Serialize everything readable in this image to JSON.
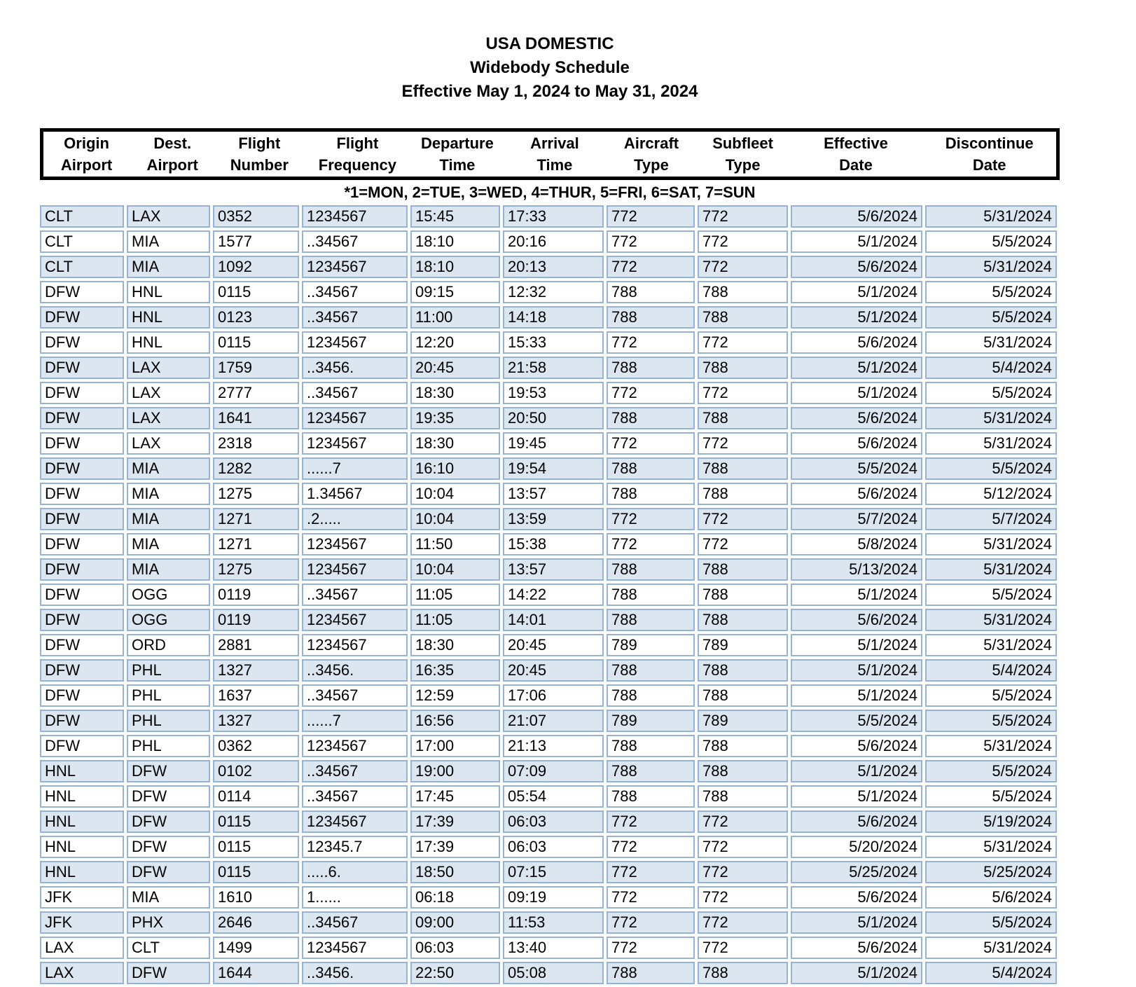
{
  "title": {
    "line1": "USA DOMESTIC",
    "line2": "Widebody Schedule",
    "line3": "Effective May 1, 2024 to May 31, 2024"
  },
  "legend": "*1=MON, 2=TUE, 3=WED, 4=THUR, 5=FRI, 6=SAT, 7=SUN",
  "columns": [
    {
      "key": "origin",
      "line1": "Origin",
      "line2": "Airport"
    },
    {
      "key": "dest",
      "line1": "Dest.",
      "line2": "Airport"
    },
    {
      "key": "flight-number",
      "line1": "Flight",
      "line2": "Number"
    },
    {
      "key": "frequency",
      "line1": "Flight",
      "line2": "Frequency"
    },
    {
      "key": "departure",
      "line1": "Departure",
      "line2": "Time"
    },
    {
      "key": "arrival",
      "line1": "Arrival",
      "line2": "Time"
    },
    {
      "key": "aircraft",
      "line1": "Aircraft",
      "line2": "Type"
    },
    {
      "key": "subfleet",
      "line1": "Subfleet",
      "line2": "Type"
    },
    {
      "key": "effective",
      "line1": "Effective",
      "line2": "Date"
    },
    {
      "key": "discontinue",
      "line1": "Discontinue",
      "line2": "Date"
    }
  ],
  "rows": [
    [
      "CLT",
      "LAX",
      "0352",
      "1234567",
      "15:45",
      "17:33",
      "772",
      "772",
      "5/6/2024",
      "5/31/2024"
    ],
    [
      "CLT",
      "MIA",
      "1577",
      "..34567",
      "18:10",
      "20:16",
      "772",
      "772",
      "5/1/2024",
      "5/5/2024"
    ],
    [
      "CLT",
      "MIA",
      "1092",
      "1234567",
      "18:10",
      "20:13",
      "772",
      "772",
      "5/6/2024",
      "5/31/2024"
    ],
    [
      "DFW",
      "HNL",
      "0115",
      "..34567",
      "09:15",
      "12:32",
      "788",
      "788",
      "5/1/2024",
      "5/5/2024"
    ],
    [
      "DFW",
      "HNL",
      "0123",
      "..34567",
      "11:00",
      "14:18",
      "788",
      "788",
      "5/1/2024",
      "5/5/2024"
    ],
    [
      "DFW",
      "HNL",
      "0115",
      "1234567",
      "12:20",
      "15:33",
      "772",
      "772",
      "5/6/2024",
      "5/31/2024"
    ],
    [
      "DFW",
      "LAX",
      "1759",
      "..3456.",
      "20:45",
      "21:58",
      "788",
      "788",
      "5/1/2024",
      "5/4/2024"
    ],
    [
      "DFW",
      "LAX",
      "2777",
      "..34567",
      "18:30",
      "19:53",
      "772",
      "772",
      "5/1/2024",
      "5/5/2024"
    ],
    [
      "DFW",
      "LAX",
      "1641",
      "1234567",
      "19:35",
      "20:50",
      "788",
      "788",
      "5/6/2024",
      "5/31/2024"
    ],
    [
      "DFW",
      "LAX",
      "2318",
      "1234567",
      "18:30",
      "19:45",
      "772",
      "772",
      "5/6/2024",
      "5/31/2024"
    ],
    [
      "DFW",
      "MIA",
      "1282",
      "......7",
      "16:10",
      "19:54",
      "788",
      "788",
      "5/5/2024",
      "5/5/2024"
    ],
    [
      "DFW",
      "MIA",
      "1275",
      "1.34567",
      "10:04",
      "13:57",
      "788",
      "788",
      "5/6/2024",
      "5/12/2024"
    ],
    [
      "DFW",
      "MIA",
      "1271",
      ".2.....",
      "10:04",
      "13:59",
      "772",
      "772",
      "5/7/2024",
      "5/7/2024"
    ],
    [
      "DFW",
      "MIA",
      "1271",
      "1234567",
      "11:50",
      "15:38",
      "772",
      "772",
      "5/8/2024",
      "5/31/2024"
    ],
    [
      "DFW",
      "MIA",
      "1275",
      "1234567",
      "10:04",
      "13:57",
      "788",
      "788",
      "5/13/2024",
      "5/31/2024"
    ],
    [
      "DFW",
      "OGG",
      "0119",
      "..34567",
      "11:05",
      "14:22",
      "788",
      "788",
      "5/1/2024",
      "5/5/2024"
    ],
    [
      "DFW",
      "OGG",
      "0119",
      "1234567",
      "11:05",
      "14:01",
      "788",
      "788",
      "5/6/2024",
      "5/31/2024"
    ],
    [
      "DFW",
      "ORD",
      "2881",
      "1234567",
      "18:30",
      "20:45",
      "789",
      "789",
      "5/1/2024",
      "5/31/2024"
    ],
    [
      "DFW",
      "PHL",
      "1327",
      "..3456.",
      "16:35",
      "20:45",
      "788",
      "788",
      "5/1/2024",
      "5/4/2024"
    ],
    [
      "DFW",
      "PHL",
      "1637",
      "..34567",
      "12:59",
      "17:06",
      "788",
      "788",
      "5/1/2024",
      "5/5/2024"
    ],
    [
      "DFW",
      "PHL",
      "1327",
      "......7",
      "16:56",
      "21:07",
      "789",
      "789",
      "5/5/2024",
      "5/5/2024"
    ],
    [
      "DFW",
      "PHL",
      "0362",
      "1234567",
      "17:00",
      "21:13",
      "788",
      "788",
      "5/6/2024",
      "5/31/2024"
    ],
    [
      "HNL",
      "DFW",
      "0102",
      "..34567",
      "19:00",
      "07:09",
      "788",
      "788",
      "5/1/2024",
      "5/5/2024"
    ],
    [
      "HNL",
      "DFW",
      "0114",
      "..34567",
      "17:45",
      "05:54",
      "788",
      "788",
      "5/1/2024",
      "5/5/2024"
    ],
    [
      "HNL",
      "DFW",
      "0115",
      "1234567",
      "17:39",
      "06:03",
      "772",
      "772",
      "5/6/2024",
      "5/19/2024"
    ],
    [
      "HNL",
      "DFW",
      "0115",
      "12345.7",
      "17:39",
      "06:03",
      "772",
      "772",
      "5/20/2024",
      "5/31/2024"
    ],
    [
      "HNL",
      "DFW",
      "0115",
      ".....6.",
      "18:50",
      "07:15",
      "772",
      "772",
      "5/25/2024",
      "5/25/2024"
    ],
    [
      "JFK",
      "MIA",
      "1610",
      "1......",
      "06:18",
      "09:19",
      "772",
      "772",
      "5/6/2024",
      "5/6/2024"
    ],
    [
      "JFK",
      "PHX",
      "2646",
      "..34567",
      "09:00",
      "11:53",
      "772",
      "772",
      "5/1/2024",
      "5/5/2024"
    ],
    [
      "LAX",
      "CLT",
      "1499",
      "1234567",
      "06:03",
      "13:40",
      "772",
      "772",
      "5/6/2024",
      "5/31/2024"
    ],
    [
      "LAX",
      "DFW",
      "1644",
      "..3456.",
      "22:50",
      "05:08",
      "788",
      "788",
      "5/1/2024",
      "5/4/2024"
    ]
  ],
  "colors": {
    "row_shaded": "#dce6f1",
    "cell_border": "#95b3d7",
    "header_border": "#000000"
  }
}
